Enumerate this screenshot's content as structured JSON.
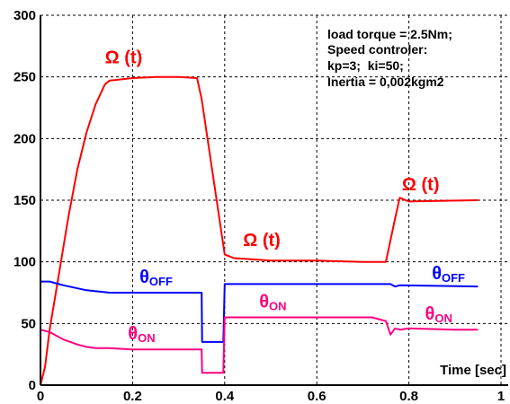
{
  "chart_data": {
    "type": "line",
    "xlabel": "Time [sec]",
    "xlim": [
      0,
      1
    ],
    "ylim": [
      0,
      300
    ],
    "x_ticks": [
      "0",
      "0.2",
      "0.4",
      "0.6",
      "0.8",
      "1"
    ],
    "y_ticks": [
      "0",
      "50",
      "100",
      "150",
      "200",
      "250",
      "300"
    ],
    "grid": true,
    "annotation_lines": [
      "load torque = 2.5Nm;",
      "Speed controler:",
      "kp=3;  ki=50;",
      "Inertia = 0,002kgm2"
    ],
    "colors": {
      "omega": "#ff0000",
      "theta_off": "#0000ff",
      "theta_on": "#ff0080"
    },
    "series": [
      {
        "name": "Ω(t)",
        "x": [
          0,
          0.01,
          0.02,
          0.04,
          0.06,
          0.08,
          0.1,
          0.12,
          0.14,
          0.15,
          0.2,
          0.25,
          0.3,
          0.34,
          0.35,
          0.4,
          0.42,
          0.5,
          0.6,
          0.7,
          0.75,
          0.77,
          0.78,
          0.8,
          0.95
        ],
        "y": [
          0,
          15,
          45,
          90,
          135,
          175,
          205,
          228,
          244,
          247,
          249,
          250,
          250,
          249,
          232,
          106,
          103,
          101,
          101,
          100,
          100,
          135,
          152,
          149,
          150
        ]
      },
      {
        "name": "θ_OFF",
        "x": [
          0,
          0.02,
          0.05,
          0.1,
          0.15,
          0.2,
          0.3,
          0.35,
          0.351,
          0.397,
          0.4,
          0.45,
          0.6,
          0.7,
          0.76,
          0.77,
          0.78,
          0.95
        ],
        "y": [
          84,
          84,
          81,
          77,
          75,
          75,
          75,
          75,
          35,
          35,
          82,
          82,
          82,
          82,
          82,
          80,
          81,
          80
        ]
      },
      {
        "name": "θ_ON",
        "x": [
          0,
          0.02,
          0.05,
          0.08,
          0.1,
          0.12,
          0.14,
          0.15,
          0.2,
          0.3,
          0.35,
          0.351,
          0.397,
          0.4,
          0.45,
          0.55,
          0.65,
          0.72,
          0.75,
          0.76,
          0.77,
          0.78,
          0.8,
          0.9,
          0.95
        ],
        "y": [
          45,
          43,
          37,
          33,
          31,
          30,
          30,
          30,
          29,
          29,
          29,
          10,
          10,
          55,
          55,
          55,
          55,
          55,
          52,
          41,
          46,
          45,
          46,
          45,
          45
        ]
      }
    ],
    "series_labels": [
      {
        "text": "Ω (t)",
        "color": "omega",
        "at": [
          0.14,
          261
        ]
      },
      {
        "text": "Ω (t)",
        "color": "omega",
        "at": [
          0.44,
          113
        ]
      },
      {
        "text": "Ω (t)",
        "color": "omega",
        "at": [
          0.785,
          158
        ]
      },
      {
        "main": "θ",
        "sub": "OFF",
        "color": "theta_off",
        "at": [
          0.215,
          83
        ]
      },
      {
        "main": "θ",
        "sub": "OFF",
        "color": "theta_off",
        "at": [
          0.85,
          86
        ]
      },
      {
        "main": "θ",
        "sub": "ON",
        "color": "theta_on",
        "at": [
          0.475,
          63
        ]
      },
      {
        "main": "θ",
        "sub": "ON",
        "color": "theta_on",
        "at": [
          0.19,
          37
        ]
      },
      {
        "main": "θ",
        "sub": "ON",
        "color": "theta_on",
        "at": [
          0.835,
          53
        ]
      }
    ]
  }
}
